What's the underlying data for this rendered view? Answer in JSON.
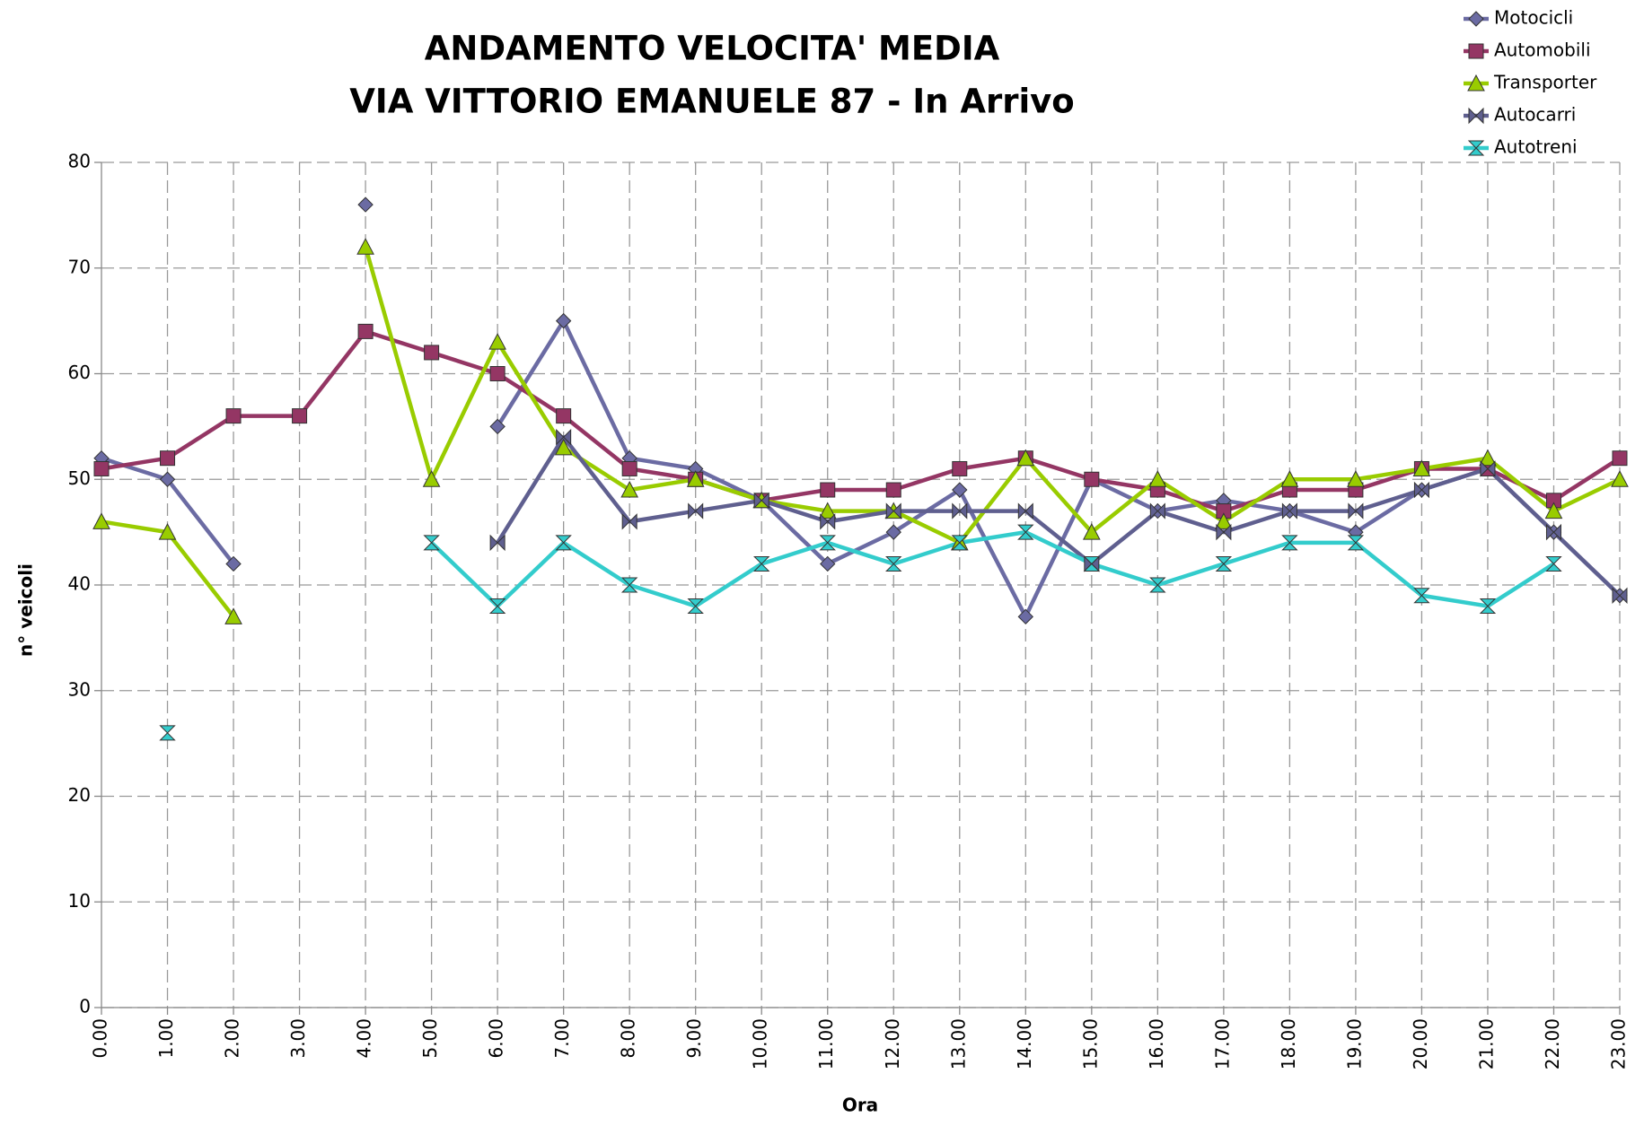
{
  "chart_data": {
    "type": "line",
    "title": [
      "ANDAMENTO VELOCITA' MEDIA",
      "VIA VITTORIO EMANUELE 87 -  In Arrivo"
    ],
    "x_label": "Ora",
    "y_label": "n° veicoli",
    "categories": [
      "0.00",
      "1.00",
      "2.00",
      "3.00",
      "4.00",
      "5.00",
      "6.00",
      "7.00",
      "8.00",
      "9.00",
      "10.00",
      "11.00",
      "12.00",
      "13.00",
      "14.00",
      "15.00",
      "16.00",
      "17.00",
      "18.00",
      "19.00",
      "20.00",
      "21.00",
      "22.00",
      "23.00"
    ],
    "ylim": [
      0,
      80
    ],
    "yticks": [
      0,
      10,
      20,
      30,
      40,
      50,
      60,
      70,
      80
    ],
    "grid": true,
    "legend": "top-right",
    "series": [
      {
        "name": "Motocicli",
        "color": "#6b6ba3",
        "marker": "diamond",
        "values": [
          52,
          50,
          42,
          null,
          76,
          null,
          55,
          65,
          52,
          51,
          48,
          42,
          45,
          49,
          37,
          50,
          47,
          48,
          47,
          45,
          49,
          51,
          45,
          39
        ]
      },
      {
        "name": "Automobili",
        "color": "#943664",
        "marker": "square",
        "values": [
          51,
          52,
          56,
          56,
          64,
          62,
          60,
          56,
          51,
          50,
          48,
          49,
          49,
          51,
          52,
          50,
          49,
          47,
          49,
          49,
          51,
          51,
          48,
          52
        ]
      },
      {
        "name": "Transporter",
        "color": "#99cc00",
        "marker": "triangle",
        "values": [
          46,
          45,
          37,
          null,
          72,
          50,
          63,
          53,
          49,
          50,
          48,
          47,
          47,
          44,
          52,
          45,
          50,
          46,
          50,
          50,
          51,
          52,
          47,
          50
        ]
      },
      {
        "name": "Autocarri",
        "color": "#5f5f8f",
        "marker": "bowtie",
        "values": [
          null,
          null,
          null,
          null,
          null,
          null,
          44,
          54,
          46,
          47,
          48,
          46,
          47,
          47,
          47,
          42,
          47,
          45,
          47,
          47,
          49,
          51,
          45,
          39
        ]
      },
      {
        "name": "Autotreni",
        "color": "#33cccc",
        "marker": "hourglass",
        "values": [
          null,
          26,
          null,
          null,
          null,
          44,
          38,
          44,
          40,
          38,
          42,
          44,
          42,
          44,
          45,
          42,
          40,
          42,
          44,
          44,
          39,
          38,
          42,
          null
        ]
      }
    ]
  }
}
